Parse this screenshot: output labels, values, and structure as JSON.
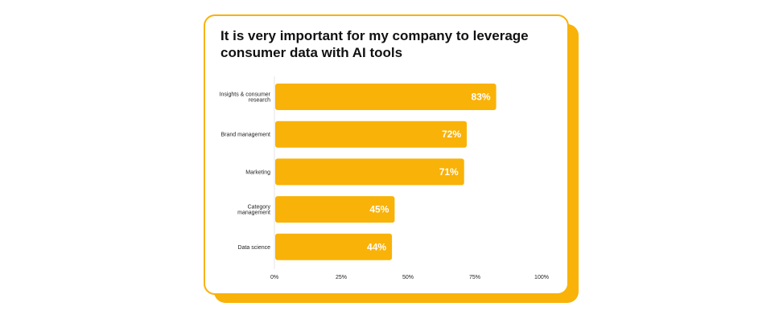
{
  "chart_data": {
    "type": "bar",
    "orientation": "horizontal",
    "title": "It is very important for my company to leverage consumer data with AI tools",
    "categories": [
      [
        "Insights & consumer",
        "research"
      ],
      [
        "Brand management"
      ],
      [
        "Marketing"
      ],
      [
        "Category",
        "management"
      ],
      [
        "Data science"
      ]
    ],
    "values": [
      83,
      72,
      71,
      45,
      44
    ],
    "value_labels": [
      "83%",
      "72%",
      "71%",
      "45%",
      "44%"
    ],
    "xlim": [
      0,
      100
    ],
    "xticks": [
      "0%",
      "25%",
      "50%",
      "75%",
      "100%"
    ],
    "bar_color": "#F9B208",
    "xlabel": "",
    "ylabel": ""
  }
}
